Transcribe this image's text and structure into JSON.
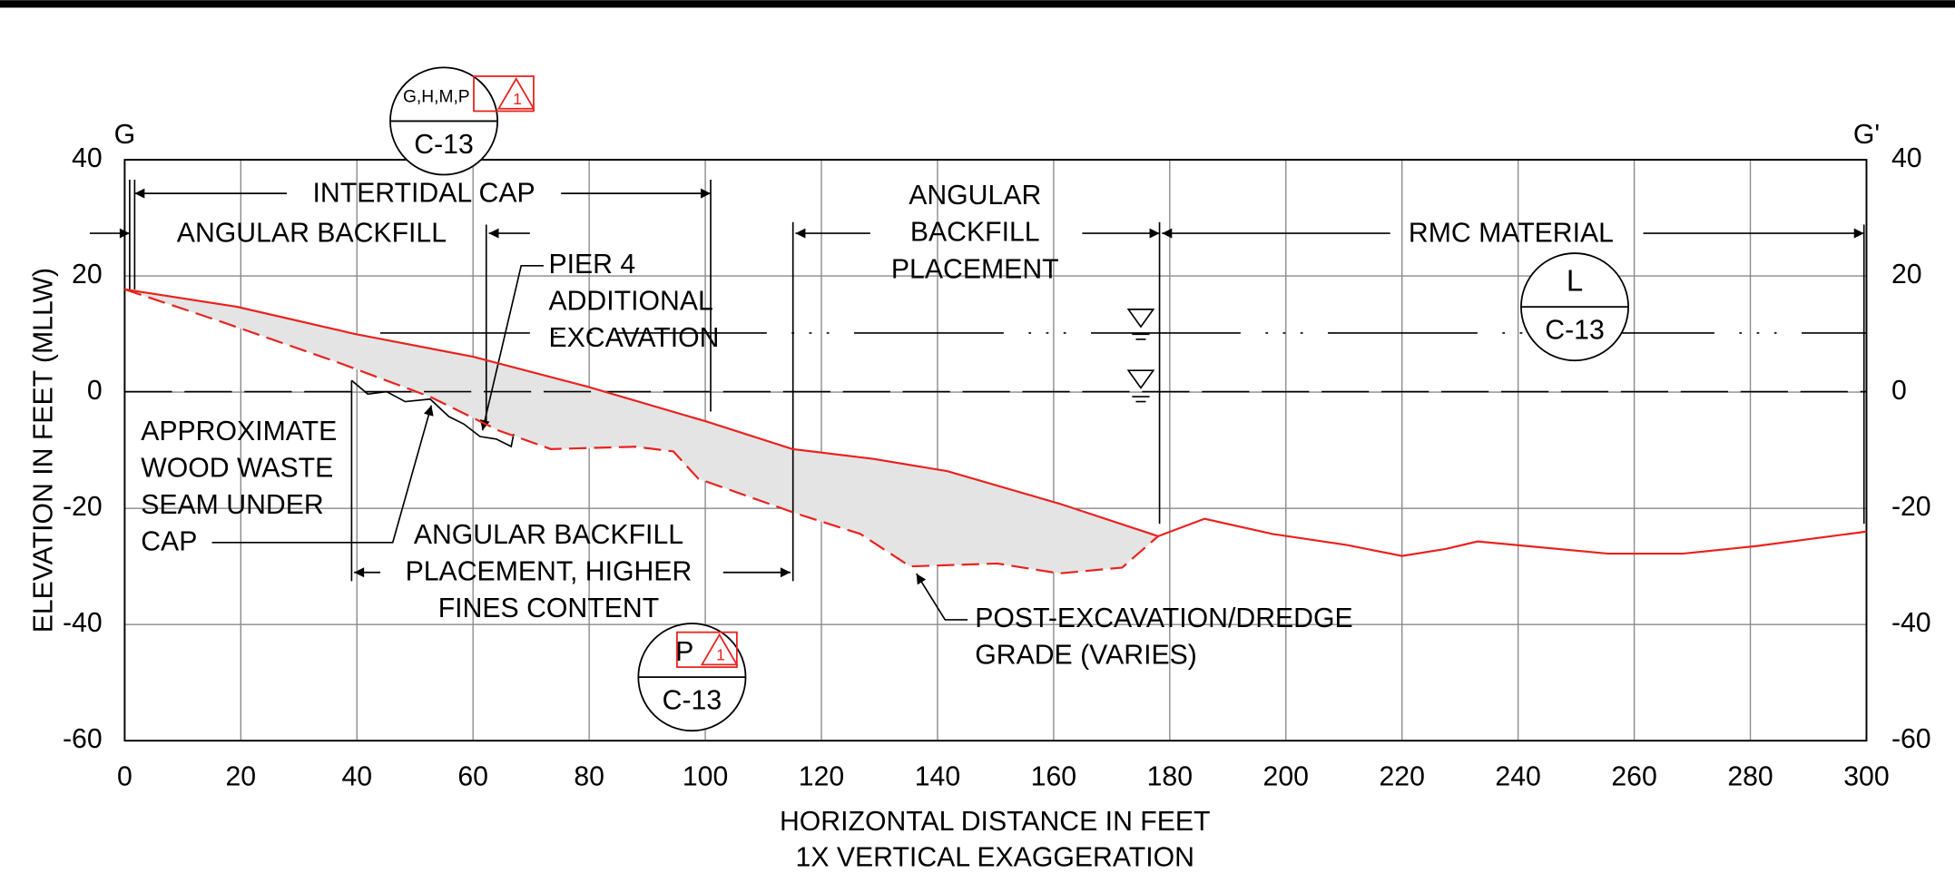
{
  "section": {
    "start": "G",
    "end": "G'"
  },
  "axes": {
    "x_label": "HORIZONTAL DISTANCE IN FEET",
    "x_sublabel": "1X VERTICAL EXAGGERATION",
    "y_label": "ELEVATION IN FEET (MLLW)",
    "xlim": [
      0,
      300
    ],
    "ylim": [
      -60,
      40
    ],
    "xticks": [
      0,
      20,
      40,
      60,
      80,
      100,
      120,
      140,
      160,
      180,
      200,
      220,
      240,
      260,
      280,
      300
    ],
    "yticks": [
      -60,
      -40,
      -20,
      0,
      20,
      40
    ]
  },
  "callouts": [
    {
      "top": "G,H,M,P",
      "bottom": "C-13",
      "revision": "1"
    },
    {
      "top": "P",
      "bottom": "C-13",
      "revision": "1"
    },
    {
      "top": "L",
      "bottom": "C-13"
    }
  ],
  "annotations": [
    {
      "lines": [
        "INTERTIDAL CAP"
      ]
    },
    {
      "lines": [
        "ANGULAR BACKFILL"
      ]
    },
    {
      "lines": [
        "ANGULAR",
        "BACKFILL",
        "PLACEMENT"
      ]
    },
    {
      "lines": [
        "RMC MATERIAL"
      ]
    },
    {
      "lines": [
        "PIER 4",
        "ADDITIONAL",
        "EXCAVATION"
      ]
    },
    {
      "lines": [
        "APPROXIMATE",
        "WOOD WASTE",
        "SEAM UNDER",
        "CAP"
      ]
    },
    {
      "lines": [
        "ANGULAR BACKFILL",
        "PLACEMENT, HIGHER",
        "FINES CONTENT"
      ]
    },
    {
      "lines": [
        "POST-EXCAVATION/DREDGE",
        "GRADE (VARIES)"
      ]
    }
  ],
  "profiles": {
    "finish_grade": {
      "x": [
        0,
        19.3,
        39.7,
        60,
        79.5,
        100,
        115,
        129,
        141.7,
        161,
        178,
        186,
        197.6,
        210.4,
        220,
        227.5,
        233,
        241.6,
        255.5,
        268.4,
        281,
        300
      ],
      "y": [
        17.7,
        14.7,
        10,
        6.1,
        1,
        -5,
        -9.8,
        -11.5,
        -13.6,
        -19.2,
        -24.8,
        -21.8,
        -24.4,
        -26.3,
        -28.2,
        -27,
        -25.7,
        -26.5,
        -27.8,
        -27.8,
        -26.5,
        -24
      ]
    },
    "dredge_grade": {
      "x": [
        0,
        17,
        36.5,
        52.6,
        64.4,
        73.4,
        88,
        94.5,
        98.8,
        116,
        126.7,
        135.3,
        150.3,
        161,
        171.8,
        178
      ],
      "y": [
        17.7,
        12,
        5.2,
        -0.8,
        -6.6,
        -9.8,
        -9.4,
        -10.2,
        -14.9,
        -21,
        -24.4,
        -30,
        -29.5,
        -31.2,
        -30.2,
        -24.8
      ]
    }
  }
}
